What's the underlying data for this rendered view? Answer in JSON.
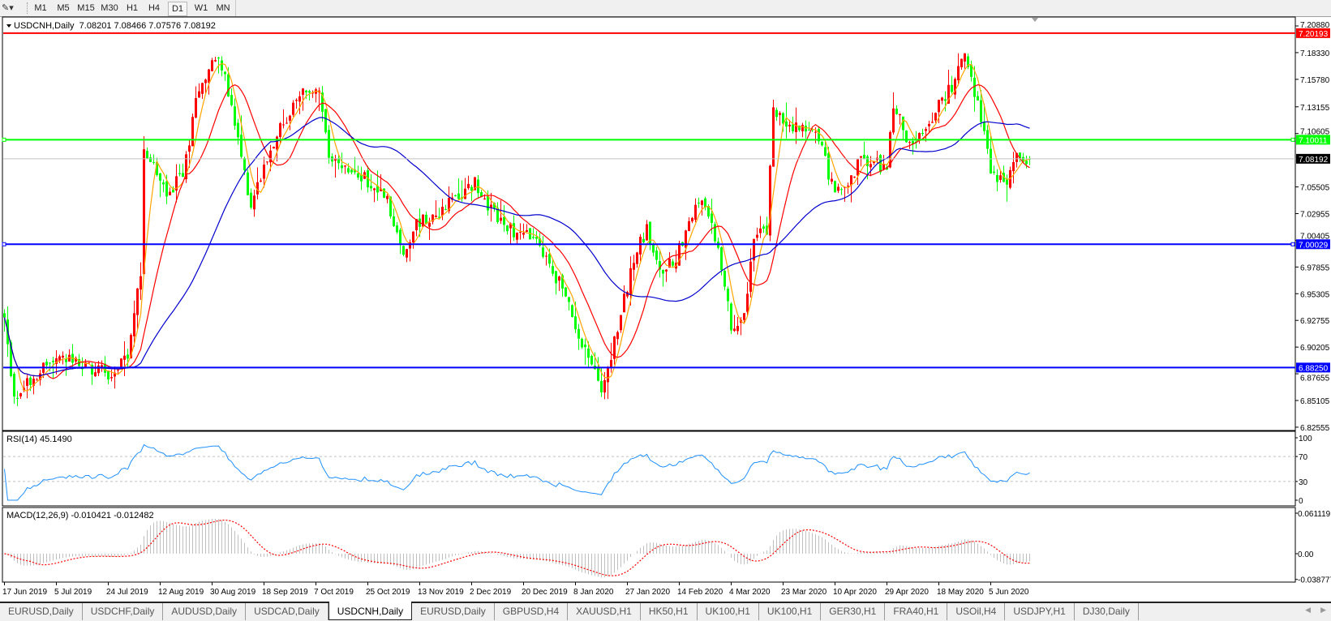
{
  "toolbar": {
    "tool_icon": "crosshair-line-tool-icon",
    "timeframes": [
      "M1",
      "M5",
      "M15",
      "M30",
      "H1",
      "H4",
      "D1",
      "W1",
      "MN"
    ],
    "active_timeframe": "D1"
  },
  "chart": {
    "header": "USDCNH,Daily  7.08201 7.08466 7.07576 7.08192",
    "symbol": "USDCNH",
    "period": "Daily",
    "last_bar": {
      "open": 7.08201,
      "high": 7.08466,
      "low": 7.07576,
      "close": 7.08192
    },
    "colors": {
      "bull_candle": "#ff0000",
      "bear_candle": "#00ff00",
      "ma_fast": "#ffa500",
      "ma_mid": "#ff0000",
      "ma_slow": "#0000cd",
      "current_price_line": "#c0c0c0"
    },
    "price_axis_ticks": [
      "7.20880",
      "7.18330",
      "7.15780",
      "7.13155",
      "7.10605",
      "7.05505",
      "7.02955",
      "7.00405",
      "6.97855",
      "6.95305",
      "6.92755",
      "6.90205",
      "6.87655",
      "6.85105",
      "6.82555"
    ],
    "horizontal_lines": [
      {
        "price": "7.20193",
        "color": "#ff0000",
        "handles": false
      },
      {
        "price": "7.10011",
        "color": "#00ff00",
        "handles": true
      },
      {
        "price": "7.00029",
        "color": "#0000ff",
        "handles": true
      },
      {
        "price": "6.88250",
        "color": "#0000ff",
        "handles": false
      }
    ],
    "current_price": "7.08192",
    "date_labels": [
      "17 Jun 2019",
      "5 Jul 2019",
      "24 Jul 2019",
      "12 Aug 2019",
      "30 Aug 2019",
      "18 Sep 2019",
      "7 Oct 2019",
      "25 Oct 2019",
      "13 Nov 2019",
      "2 Dec 2019",
      "20 Dec 2019",
      "8 Jan 2020",
      "27 Jan 2020",
      "14 Feb 2020",
      "4 Mar 2020",
      "23 Mar 2020",
      "10 Apr 2020",
      "29 Apr 2020",
      "18 May 2020",
      "5 Jun 2020"
    ],
    "close_path": [
      [
        "2019-06-17",
        6.9282
      ],
      [
        "2019-06-20",
        6.8508
      ],
      [
        "2019-06-27",
        6.8753
      ],
      [
        "2019-07-05",
        6.8915
      ],
      [
        "2019-07-25",
        6.8753
      ],
      [
        "2019-07-31",
        6.8915
      ],
      [
        "2019-08-05",
        6.973
      ],
      [
        "2019-08-06",
        7.0952
      ],
      [
        "2019-08-14",
        7.0463
      ],
      [
        "2019-08-20",
        7.0667
      ],
      [
        "2019-08-26",
        7.1522
      ],
      [
        "2019-09-02",
        7.1848
      ],
      [
        "2019-09-06",
        7.1278
      ],
      [
        "2019-09-13",
        7.0382
      ],
      [
        "2019-09-20",
        7.0952
      ],
      [
        "2019-09-30",
        7.1359
      ],
      [
        "2019-10-03",
        7.1482
      ],
      [
        "2019-10-08",
        7.1441
      ],
      [
        "2019-10-11",
        7.0789
      ],
      [
        "2019-10-24",
        7.0626
      ],
      [
        "2019-11-01",
        7.0422
      ],
      [
        "2019-11-07",
        6.9893
      ],
      [
        "2019-11-11",
        7.0178
      ],
      [
        "2019-11-21",
        7.0341
      ],
      [
        "2019-12-03",
        7.0585
      ],
      [
        "2019-12-09",
        7.0341
      ],
      [
        "2019-12-16",
        7.0137
      ],
      [
        "2019-12-24",
        7.0056
      ],
      [
        "2020-01-02",
        6.9649
      ],
      [
        "2020-01-10",
        6.9078
      ],
      [
        "2020-01-17",
        6.863
      ],
      [
        "2020-01-20",
        6.8834
      ],
      [
        "2020-01-24",
        6.9323
      ],
      [
        "2020-01-29",
        6.9893
      ],
      [
        "2020-02-03",
        7.0137
      ],
      [
        "2020-02-07",
        6.973
      ],
      [
        "2020-02-13",
        6.9893
      ],
      [
        "2020-02-21",
        7.0463
      ],
      [
        "2020-02-28",
        6.9974
      ],
      [
        "2020-03-04",
        6.9201
      ],
      [
        "2020-03-09",
        6.9364
      ],
      [
        "2020-03-12",
        7.0056
      ],
      [
        "2020-03-17",
        7.0137
      ],
      [
        "2020-03-19",
        7.1278
      ],
      [
        "2020-03-25",
        7.1115
      ],
      [
        "2020-04-03",
        7.1115
      ],
      [
        "2020-04-09",
        7.0585
      ],
      [
        "2020-04-10",
        7.0463
      ],
      [
        "2020-04-20",
        7.0789
      ],
      [
        "2020-04-29",
        7.0748
      ],
      [
        "2020-05-01",
        7.1319
      ],
      [
        "2020-05-08",
        7.0911
      ],
      [
        "2020-05-15",
        7.1237
      ],
      [
        "2020-05-22",
        7.1522
      ],
      [
        "2020-05-27",
        7.1848
      ],
      [
        "2020-05-29",
        7.1563
      ],
      [
        "2020-06-03",
        7.1115
      ],
      [
        "2020-06-05",
        7.0667
      ],
      [
        "2020-06-11",
        7.0585
      ],
      [
        "2020-06-15",
        7.083
      ],
      [
        "2020-06-19",
        7.08192
      ]
    ]
  },
  "rsi": {
    "label": "RSI(14) 45.1490",
    "levels": [
      "100",
      "70",
      "30",
      "0"
    ],
    "color": "#1e90ff"
  },
  "macd": {
    "label": "MACD(12,26,9) -0.010421 -0.012482",
    "scale_ticks": [
      "0.061119",
      "0.00",
      "-0.038777"
    ],
    "histogram_color": "#c0c0c0",
    "signal_color": "#ff0000"
  },
  "tabs": [
    {
      "label": "EURUSD,Daily"
    },
    {
      "label": "USDCHF,Daily"
    },
    {
      "label": "AUDUSD,Daily"
    },
    {
      "label": "USDCAD,Daily"
    },
    {
      "label": "USDCNH,Daily",
      "active": true
    },
    {
      "label": "EURUSD,Daily"
    },
    {
      "label": "GBPUSD,H4"
    },
    {
      "label": "XAUUSD,H1"
    },
    {
      "label": "HK50,H1"
    },
    {
      "label": "UK100,H1"
    },
    {
      "label": "UK100,H1"
    },
    {
      "label": "GER30,H1"
    },
    {
      "label": "FRA40,H1"
    },
    {
      "label": "USOil,H4"
    },
    {
      "label": "USDJPY,H1"
    },
    {
      "label": "DJ30,Daily"
    }
  ]
}
